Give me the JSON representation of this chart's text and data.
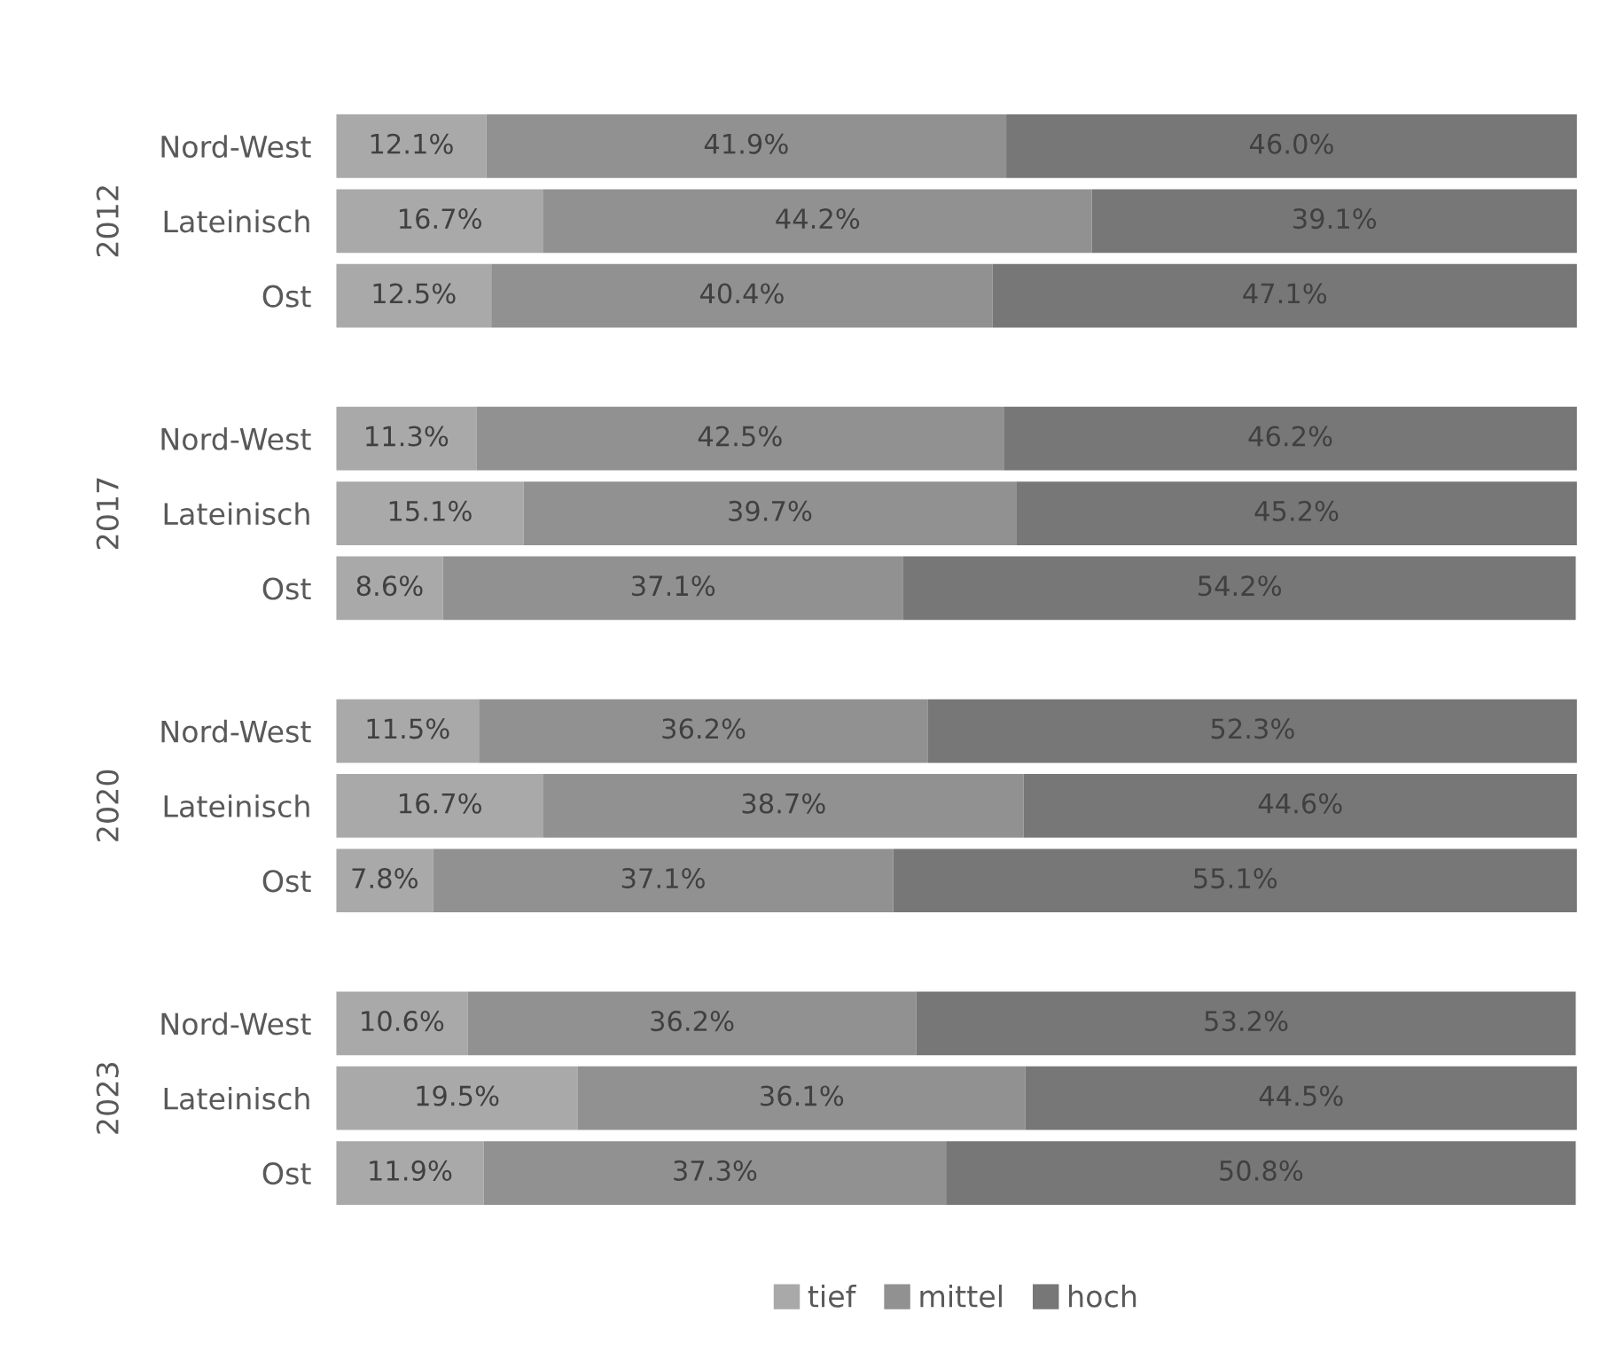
{
  "chart_data": [
    {
      "type": "bar",
      "orientation": "horizontal",
      "stacked": true,
      "tick_labels": "y",
      "ylabel": "2012",
      "categories": [
        "Nord-West",
        "Lateinisch",
        "Ost"
      ],
      "legend": "bottom",
      "series": [
        {
          "name": "tief",
          "color": "#a9a9a9",
          "values": [
            12.1,
            16.7,
            12.5
          ],
          "value_labels": [
            "12.1%",
            "16.7%",
            "12.5%"
          ]
        },
        {
          "name": "mittel",
          "color": "#919191",
          "values": [
            41.9,
            44.2,
            40.4
          ],
          "value_labels": [
            "41.9%",
            "44.2%",
            "40.4%"
          ]
        },
        {
          "name": "hoch",
          "color": "#777777",
          "values": [
            46.0,
            39.1,
            47.1
          ],
          "value_labels": [
            "46.0%",
            "39.1%",
            "47.1%"
          ]
        }
      ]
    },
    {
      "type": "bar",
      "orientation": "horizontal",
      "stacked": true,
      "tick_labels": "y",
      "ylabel": "2017",
      "categories": [
        "Nord-West",
        "Lateinisch",
        "Ost"
      ],
      "series": [
        {
          "color": "#a9a9a9",
          "values": [
            11.3,
            15.1,
            8.6
          ],
          "value_labels": [
            "11.3%",
            "15.1%",
            "8.6%"
          ]
        },
        {
          "color": "#919191",
          "values": [
            42.5,
            39.7,
            37.1
          ],
          "value_labels": [
            "42.5%",
            "39.7%",
            "37.1%"
          ]
        },
        {
          "color": "#777777",
          "values": [
            46.2,
            45.2,
            54.2
          ],
          "value_labels": [
            "46.2%",
            "45.2%",
            "54.2%"
          ]
        }
      ]
    },
    {
      "type": "bar",
      "orientation": "horizontal",
      "stacked": true,
      "tick_labels": "y",
      "ylabel": "2020",
      "categories": [
        "Nord-West",
        "Lateinisch",
        "Ost"
      ],
      "series": [
        {
          "color": "#a9a9a9",
          "values": [
            11.5,
            16.7,
            7.8
          ],
          "value_labels": [
            "11.5%",
            "16.7%",
            "7.8%"
          ]
        },
        {
          "color": "#919191",
          "values": [
            36.2,
            38.7,
            37.1
          ],
          "value_labels": [
            "36.2%",
            "38.7%",
            "37.1%"
          ]
        },
        {
          "color": "#777777",
          "values": [
            52.3,
            44.6,
            55.1
          ],
          "value_labels": [
            "52.3%",
            "44.6%",
            "55.1%"
          ]
        }
      ]
    },
    {
      "type": "bar",
      "orientation": "horizontal",
      "stacked": true,
      "tick_labels": "y",
      "ylabel": "2023",
      "categories": [
        "Nord-West",
        "Lateinisch",
        "Ost"
      ],
      "series": [
        {
          "color": "#a9a9a9",
          "values": [
            10.6,
            19.5,
            11.9
          ],
          "value_labels": [
            "10.6%",
            "19.5%",
            "11.9%"
          ]
        },
        {
          "color": "#919191",
          "values": [
            36.2,
            36.1,
            37.3
          ],
          "value_labels": [
            "36.2%",
            "36.1%",
            "37.3%"
          ]
        },
        {
          "color": "#777777",
          "values": [
            53.2,
            44.5,
            50.8
          ],
          "value_labels": [
            "53.2%",
            "44.5%",
            "50.8%"
          ]
        }
      ]
    }
  ]
}
